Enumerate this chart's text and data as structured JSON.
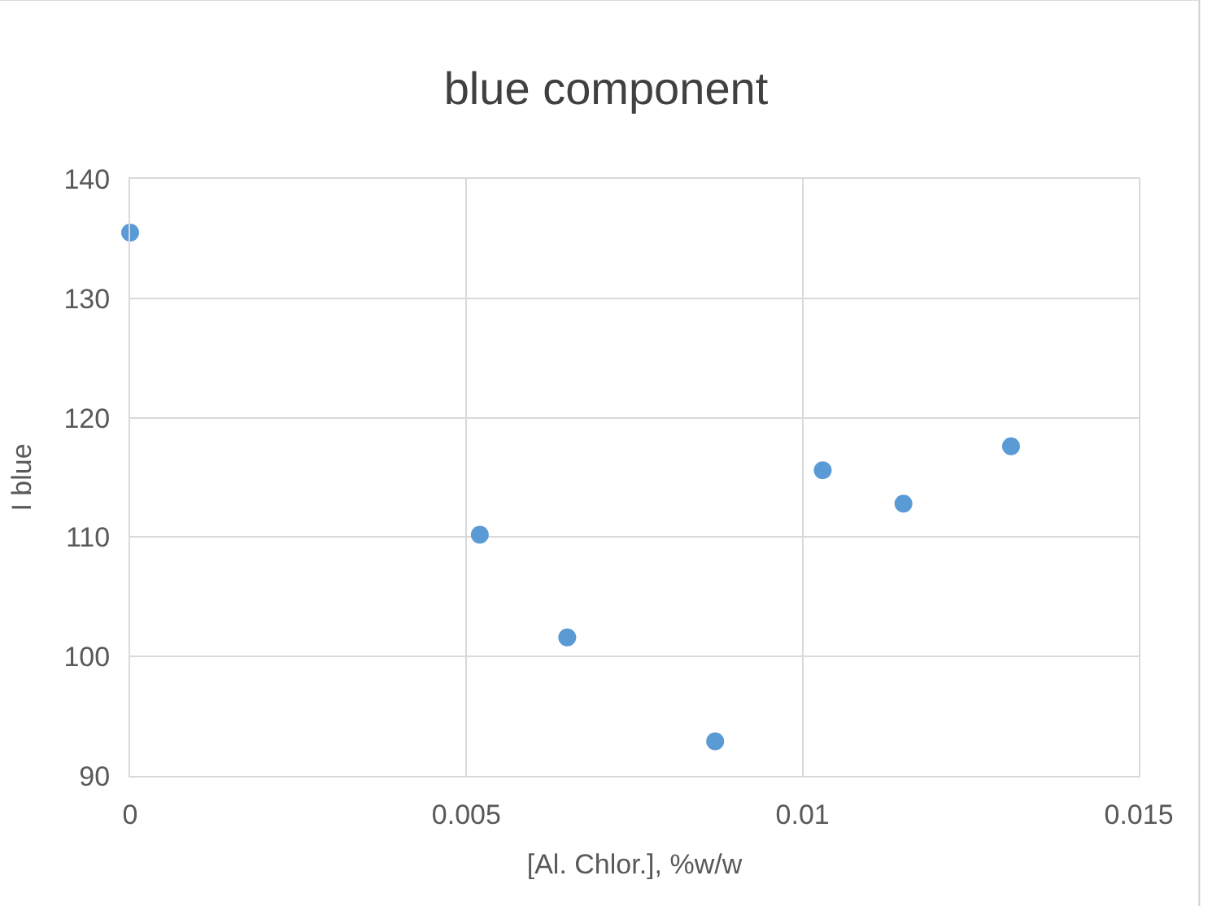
{
  "chart_data": {
    "type": "scatter",
    "title": "blue component",
    "xlabel": "[Al. Chlor.], %w/w",
    "ylabel": "I blue",
    "x": [
      0,
      0.0052,
      0.0065,
      0.0087,
      0.0103,
      0.0115,
      0.0131
    ],
    "series": [
      {
        "color": "#5b9bd5",
        "values": [
          135.5,
          110.2,
          101.6,
          92.9,
          115.6,
          112.8,
          117.6
        ]
      }
    ],
    "xlim": [
      0,
      0.015
    ],
    "xticks": [
      0,
      0.005,
      0.01,
      0.015
    ],
    "ylim": [
      90,
      140
    ],
    "yticks": [
      90,
      100,
      110,
      120,
      130,
      140
    ],
    "grid": true,
    "marker": "circle"
  }
}
